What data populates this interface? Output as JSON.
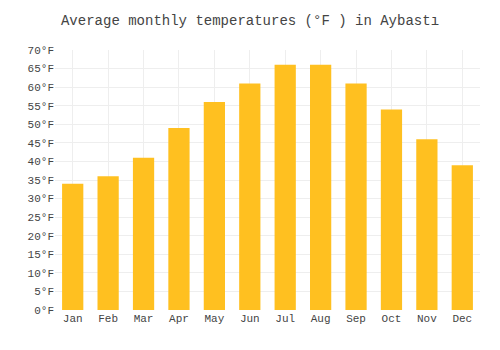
{
  "chart_data": {
    "type": "bar",
    "title": "Average monthly temperatures (°F ) in Aybastı",
    "categories": [
      "Jan",
      "Feb",
      "Mar",
      "Apr",
      "May",
      "Jun",
      "Jul",
      "Aug",
      "Sep",
      "Oct",
      "Nov",
      "Dec"
    ],
    "values": [
      34,
      36,
      41,
      49,
      56,
      61,
      66,
      66,
      61,
      54,
      46,
      39
    ],
    "color": "#FFC020",
    "ylim": [
      0,
      70
    ],
    "yticks": [
      {
        "value": 0,
        "label": "0°F"
      },
      {
        "value": 5,
        "label": "5°F"
      },
      {
        "value": 10,
        "label": "10°F"
      },
      {
        "value": 15,
        "label": "15°F"
      },
      {
        "value": 20,
        "label": "20°F"
      },
      {
        "value": 25,
        "label": "25°F"
      },
      {
        "value": 30,
        "label": "30°F"
      },
      {
        "value": 35,
        "label": "35°F"
      },
      {
        "value": 40,
        "label": "40°F"
      },
      {
        "value": 45,
        "label": "45°F"
      },
      {
        "value": 50,
        "label": "50°F"
      },
      {
        "value": 55,
        "label": "55°F"
      },
      {
        "value": 60,
        "label": "60°F"
      },
      {
        "value": 65,
        "label": "65°F"
      },
      {
        "value": 70,
        "label": "70°F"
      }
    ],
    "grid": true
  }
}
